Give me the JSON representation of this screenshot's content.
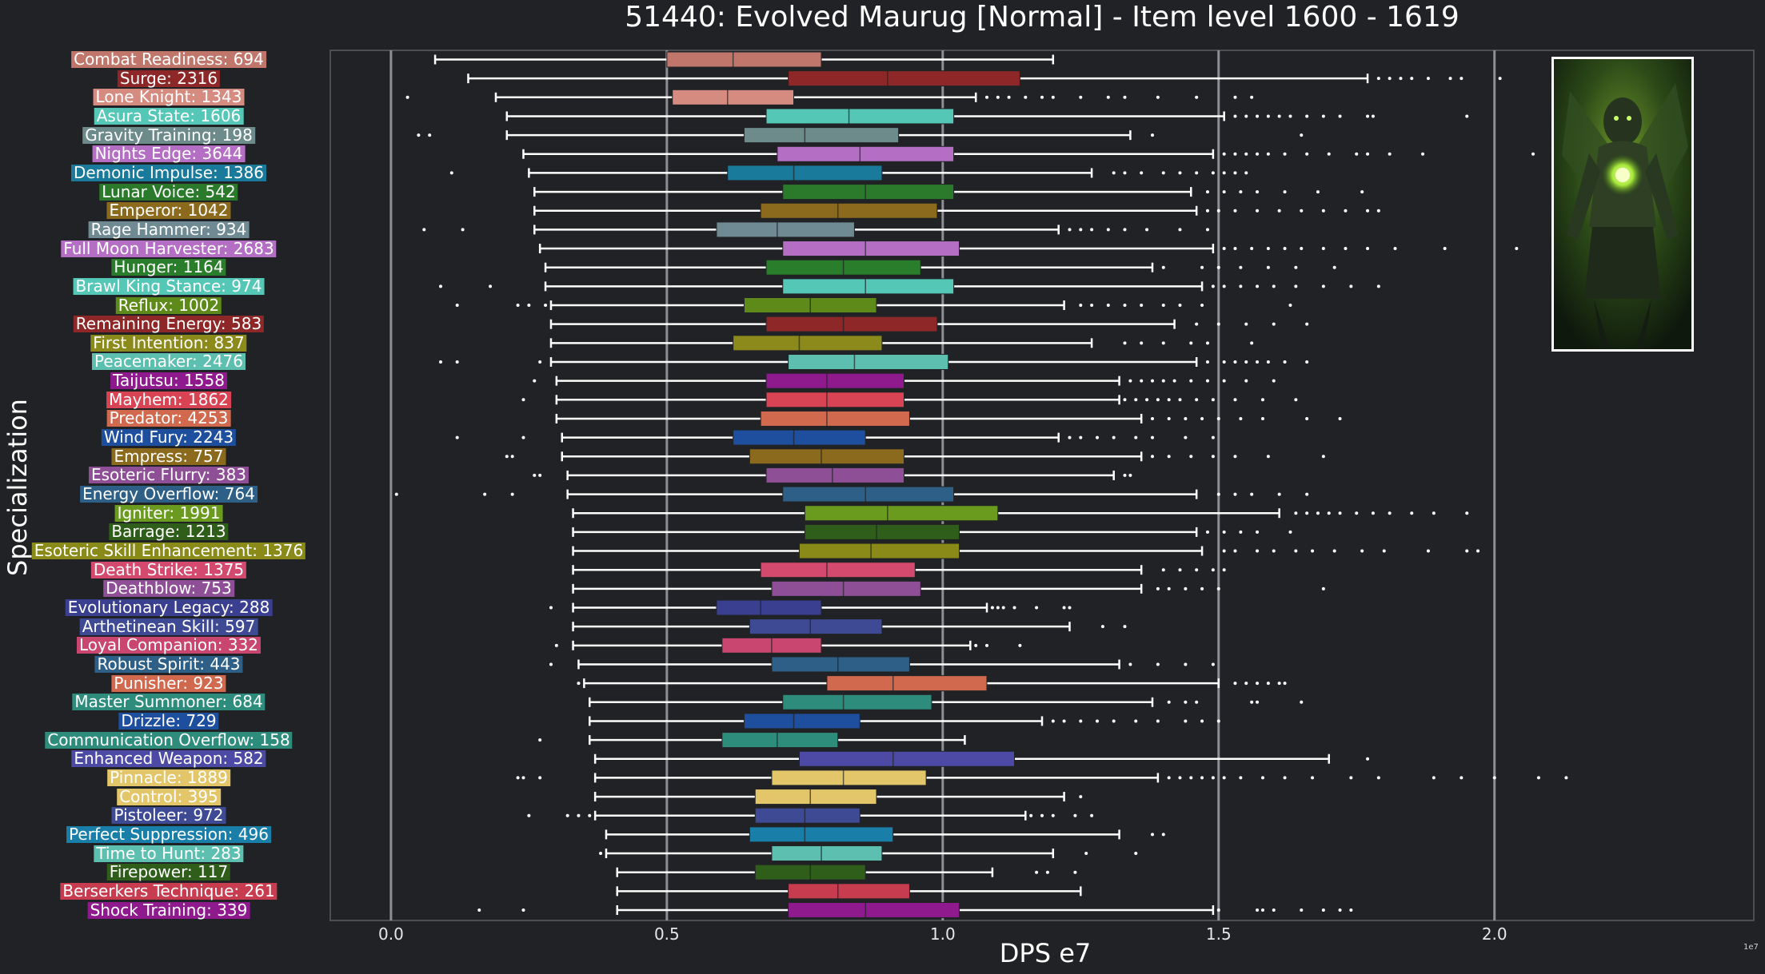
{
  "header": {
    "title": "51440: Evolved Maurug [Normal] - Item level 1600 - 1619"
  },
  "chart_data": {
    "type": "boxplot",
    "orientation": "horizontal",
    "xlabel": "DPS e7",
    "ylabel": "Specialization",
    "x_scale_note": "1e7",
    "xlim": [
      -0.11,
      2.47
    ],
    "xticks": [
      "0.0",
      "0.5",
      "1.0",
      "1.5",
      "2.0"
    ],
    "xtick_values": [
      0,
      0.5,
      1.0,
      1.5,
      2.0
    ],
    "grid": "vertical",
    "series": [
      {
        "label": "Combat Readiness: 694",
        "color": "#c0766a",
        "whisker": [
          0.08,
          1.2
        ],
        "box": [
          0.5,
          0.78
        ],
        "median": 0.62,
        "outliers": []
      },
      {
        "label": "Surge: 2316",
        "color": "#8e2727",
        "whisker": [
          0.14,
          1.77
        ],
        "box": [
          0.72,
          1.14
        ],
        "median": 0.9,
        "outliers": [
          1.79,
          1.81,
          1.83,
          1.85,
          1.88,
          1.92,
          1.94,
          2.01
        ]
      },
      {
        "label": "Lone Knight: 1343",
        "color": "#d68b80",
        "whisker": [
          0.19,
          1.06
        ],
        "box": [
          0.51,
          0.73
        ],
        "median": 0.61,
        "outliers": [
          0.03,
          1.08,
          1.1,
          1.12,
          1.15,
          1.18,
          1.2,
          1.25,
          1.3,
          1.33,
          1.39,
          1.46,
          1.53,
          1.56
        ]
      },
      {
        "label": "Asura State: 1606",
        "color": "#55c7b7",
        "whisker": [
          0.21,
          1.51
        ],
        "box": [
          0.68,
          1.02
        ],
        "median": 0.83,
        "outliers": [
          1.53,
          1.55,
          1.57,
          1.59,
          1.61,
          1.63,
          1.66,
          1.69,
          1.72,
          1.77,
          1.78,
          1.95
        ]
      },
      {
        "label": "Gravity Training: 198",
        "color": "#6e8b8c",
        "whisker": [
          0.21,
          1.34
        ],
        "box": [
          0.64,
          0.92
        ],
        "median": 0.75,
        "outliers": [
          0.05,
          0.07,
          1.38,
          1.65
        ]
      },
      {
        "label": "Nights Edge: 3644",
        "color": "#b46fc4",
        "whisker": [
          0.24,
          1.49
        ],
        "box": [
          0.7,
          1.02
        ],
        "median": 0.85,
        "outliers": [
          1.51,
          1.53,
          1.55,
          1.57,
          1.59,
          1.62,
          1.66,
          1.7,
          1.75,
          1.77,
          1.81,
          1.87,
          2.07
        ]
      },
      {
        "label": "Demonic Impulse: 1386",
        "color": "#1a7a9c",
        "whisker": [
          0.25,
          1.27
        ],
        "box": [
          0.61,
          0.89
        ],
        "median": 0.73,
        "outliers": [
          0.11,
          1.31,
          1.33,
          1.36,
          1.4,
          1.43,
          1.46,
          1.49,
          1.51,
          1.53,
          1.55
        ]
      },
      {
        "label": "Lunar Voice: 542",
        "color": "#2b7a2b",
        "whisker": [
          0.26,
          1.45
        ],
        "box": [
          0.71,
          1.02
        ],
        "median": 0.86,
        "outliers": [
          1.48,
          1.51,
          1.54,
          1.57,
          1.62,
          1.68,
          1.76
        ]
      },
      {
        "label": "Emperor: 1042",
        "color": "#8b6a1e",
        "whisker": [
          0.26,
          1.46
        ],
        "box": [
          0.67,
          0.99
        ],
        "median": 0.81,
        "outliers": [
          1.48,
          1.5,
          1.53,
          1.57,
          1.61,
          1.65,
          1.69,
          1.73,
          1.77,
          1.79
        ]
      },
      {
        "label": "Rage Hammer: 934",
        "color": "#6f8a93",
        "whisker": [
          0.26,
          1.21
        ],
        "box": [
          0.59,
          0.84
        ],
        "median": 0.7,
        "outliers": [
          0.06,
          0.13,
          1.23,
          1.25,
          1.27,
          1.3,
          1.33,
          1.37,
          1.43,
          1.48
        ]
      },
      {
        "label": "Full Moon Harvester: 2683",
        "color": "#b46fc4",
        "whisker": [
          0.27,
          1.49
        ],
        "box": [
          0.71,
          1.03
        ],
        "median": 0.86,
        "outliers": [
          1.51,
          1.53,
          1.56,
          1.59,
          1.62,
          1.65,
          1.69,
          1.73,
          1.77,
          1.82,
          1.91,
          2.04
        ]
      },
      {
        "label": "Hunger: 1164",
        "color": "#2a7d2a",
        "whisker": [
          0.28,
          1.38
        ],
        "box": [
          0.68,
          0.96
        ],
        "median": 0.82,
        "outliers": [
          1.4,
          1.47,
          1.5,
          1.54,
          1.59,
          1.64,
          1.71
        ]
      },
      {
        "label": "Brawl King Stance: 974",
        "color": "#55c7b7",
        "whisker": [
          0.28,
          1.47
        ],
        "box": [
          0.71,
          1.02
        ],
        "median": 0.86,
        "outliers": [
          0.09,
          0.18,
          1.49,
          1.51,
          1.54,
          1.57,
          1.6,
          1.64,
          1.69,
          1.74,
          1.79
        ]
      },
      {
        "label": "Reflux: 1002",
        "color": "#5d8a18",
        "whisker": [
          0.29,
          1.22
        ],
        "box": [
          0.64,
          0.88
        ],
        "median": 0.76,
        "outliers": [
          0.12,
          0.23,
          0.25,
          0.28,
          1.25,
          1.27,
          1.3,
          1.33,
          1.36,
          1.4,
          1.43,
          1.47,
          1.63
        ]
      },
      {
        "label": "Remaining Energy: 583",
        "color": "#8e2727",
        "whisker": [
          0.29,
          1.42
        ],
        "box": [
          0.68,
          0.99
        ],
        "median": 0.82,
        "outliers": [
          1.46,
          1.5,
          1.55,
          1.6,
          1.66
        ]
      },
      {
        "label": "First Intention: 837",
        "color": "#8b8a1a",
        "whisker": [
          0.29,
          1.27
        ],
        "box": [
          0.62,
          0.89
        ],
        "median": 0.74,
        "outliers": [
          1.33,
          1.36,
          1.4,
          1.45,
          1.48,
          1.56
        ]
      },
      {
        "label": "Peacemaker: 2476",
        "color": "#5dbfb0",
        "whisker": [
          0.29,
          1.46
        ],
        "box": [
          0.72,
          1.01
        ],
        "median": 0.84,
        "outliers": [
          0.09,
          0.12,
          0.27,
          1.48,
          1.51,
          1.53,
          1.55,
          1.57,
          1.59,
          1.62,
          1.66
        ]
      },
      {
        "label": "Taijutsu: 1558",
        "color": "#8e1a8e",
        "whisker": [
          0.3,
          1.32
        ],
        "box": [
          0.68,
          0.93
        ],
        "median": 0.79,
        "outliers": [
          0.26,
          1.34,
          1.36,
          1.38,
          1.4,
          1.42,
          1.45,
          1.48,
          1.51,
          1.55,
          1.6
        ]
      },
      {
        "label": "Mayhem: 1862",
        "color": "#d94455",
        "whisker": [
          0.3,
          1.32
        ],
        "box": [
          0.68,
          0.93
        ],
        "median": 0.79,
        "outliers": [
          0.24,
          1.33,
          1.35,
          1.37,
          1.39,
          1.41,
          1.43,
          1.46,
          1.49,
          1.53,
          1.58,
          1.64
        ]
      },
      {
        "label": "Predator: 4253",
        "color": "#d0694e",
        "whisker": [
          0.3,
          1.36
        ],
        "box": [
          0.67,
          0.94
        ],
        "median": 0.79,
        "outliers": [
          1.38,
          1.41,
          1.44,
          1.47,
          1.5,
          1.54,
          1.58,
          1.66,
          1.72
        ]
      },
      {
        "label": "Wind Fury: 2243",
        "color": "#1e4f9e",
        "whisker": [
          0.31,
          1.21
        ],
        "box": [
          0.62,
          0.86
        ],
        "median": 0.73,
        "outliers": [
          0.12,
          0.24,
          1.23,
          1.25,
          1.28,
          1.31,
          1.35,
          1.38,
          1.44,
          1.49
        ]
      },
      {
        "label": "Empress: 757",
        "color": "#8b6a1e",
        "whisker": [
          0.31,
          1.36
        ],
        "box": [
          0.65,
          0.93
        ],
        "median": 0.78,
        "outliers": [
          0.21,
          0.22,
          1.38,
          1.41,
          1.45,
          1.49,
          1.53,
          1.59,
          1.69
        ]
      },
      {
        "label": "Esoteric Flurry: 383",
        "color": "#8f4f96",
        "whisker": [
          0.32,
          1.31
        ],
        "box": [
          0.68,
          0.93
        ],
        "median": 0.8,
        "outliers": [
          0.26,
          0.27,
          1.33,
          1.34
        ]
      },
      {
        "label": "Energy Overflow: 764",
        "color": "#2e5f86",
        "whisker": [
          0.32,
          1.46
        ],
        "box": [
          0.71,
          1.02
        ],
        "median": 0.86,
        "outliers": [
          0.01,
          0.17,
          0.22,
          1.5,
          1.53,
          1.56,
          1.61,
          1.66
        ]
      },
      {
        "label": "Igniter: 1991",
        "color": "#6a9a1e",
        "whisker": [
          0.33,
          1.61
        ],
        "box": [
          0.75,
          1.1
        ],
        "median": 0.9,
        "outliers": [
          1.64,
          1.66,
          1.68,
          1.7,
          1.72,
          1.75,
          1.78,
          1.81,
          1.85,
          1.89,
          1.95
        ]
      },
      {
        "label": "Barrage: 1213",
        "color": "#2f5e1a",
        "whisker": [
          0.33,
          1.46
        ],
        "box": [
          0.75,
          1.03
        ],
        "median": 0.88,
        "outliers": [
          1.48,
          1.51,
          1.54,
          1.57,
          1.63
        ]
      },
      {
        "label": "Esoteric Skill Enhancement: 1376",
        "color": "#8a8a18",
        "whisker": [
          0.33,
          1.47
        ],
        "box": [
          0.74,
          1.03
        ],
        "median": 0.87,
        "outliers": [
          1.51,
          1.53,
          1.57,
          1.6,
          1.64,
          1.67,
          1.71,
          1.76,
          1.8,
          1.88,
          1.95,
          1.97
        ]
      },
      {
        "label": "Death Strike: 1375",
        "color": "#d44a6e",
        "whisker": [
          0.33,
          1.36
        ],
        "box": [
          0.67,
          0.95
        ],
        "median": 0.79,
        "outliers": [
          1.4,
          1.43,
          1.46,
          1.49,
          1.51
        ]
      },
      {
        "label": "Deathblow: 753",
        "color": "#8f4f96",
        "whisker": [
          0.33,
          1.36
        ],
        "box": [
          0.69,
          0.96
        ],
        "median": 0.82,
        "outliers": [
          1.39,
          1.41,
          1.44,
          1.47,
          1.5,
          1.69
        ]
      },
      {
        "label": "Evolutionary Legacy: 288",
        "color": "#3a3f8f",
        "whisker": [
          0.33,
          1.08
        ],
        "box": [
          0.59,
          0.78
        ],
        "median": 0.67,
        "outliers": [
          0.29,
          1.09,
          1.1,
          1.11,
          1.13,
          1.17,
          1.22,
          1.23
        ]
      },
      {
        "label": "Arthetinean Skill: 597",
        "color": "#3f4a94",
        "whisker": [
          0.33,
          1.23
        ],
        "box": [
          0.65,
          0.89
        ],
        "median": 0.76,
        "outliers": [
          1.29,
          1.33
        ]
      },
      {
        "label": "Loyal Companion: 332",
        "color": "#c94670",
        "whisker": [
          0.33,
          1.05
        ],
        "box": [
          0.6,
          0.78
        ],
        "median": 0.69,
        "outliers": [
          0.3,
          1.06,
          1.08,
          1.14
        ]
      },
      {
        "label": "Robust Spirit: 443",
        "color": "#2e5f86",
        "whisker": [
          0.34,
          1.32
        ],
        "box": [
          0.69,
          0.94
        ],
        "median": 0.81,
        "outliers": [
          0.29,
          1.34,
          1.39,
          1.44,
          1.49
        ]
      },
      {
        "label": "Punisher: 923",
        "color": "#d0694e",
        "whisker": [
          0.35,
          1.5
        ],
        "box": [
          0.79,
          1.08
        ],
        "median": 0.91,
        "outliers": [
          0.34,
          1.53,
          1.55,
          1.57,
          1.59,
          1.61,
          1.62
        ]
      },
      {
        "label": "Master Summoner: 684",
        "color": "#2d8c7c",
        "whisker": [
          0.36,
          1.38
        ],
        "box": [
          0.71,
          0.98
        ],
        "median": 0.82,
        "outliers": [
          1.41,
          1.44,
          1.46,
          1.56,
          1.57,
          1.65
        ]
      },
      {
        "label": "Drizzle: 729",
        "color": "#1e4f9e",
        "whisker": [
          0.36,
          1.18
        ],
        "box": [
          0.64,
          0.85
        ],
        "median": 0.73,
        "outliers": [
          1.2,
          1.22,
          1.25,
          1.28,
          1.31,
          1.35,
          1.39,
          1.44,
          1.47,
          1.5
        ]
      },
      {
        "label": "Communication Overflow: 158",
        "color": "#2d8c7c",
        "whisker": [
          0.36,
          1.04
        ],
        "box": [
          0.6,
          0.81
        ],
        "median": 0.7,
        "outliers": [
          0.27
        ]
      },
      {
        "label": "Enhanced Weapon: 582",
        "color": "#4d4aa6",
        "whisker": [
          0.37,
          1.7
        ],
        "box": [
          0.74,
          1.13
        ],
        "median": 0.91,
        "outliers": [
          1.77
        ]
      },
      {
        "label": "Pinnacle: 1889",
        "color": "#e3c66a",
        "whisker": [
          0.37,
          1.39
        ],
        "box": [
          0.69,
          0.97
        ],
        "median": 0.82,
        "outliers": [
          0.23,
          0.24,
          0.27,
          1.41,
          1.43,
          1.45,
          1.47,
          1.49,
          1.51,
          1.54,
          1.58,
          1.62,
          1.67,
          1.74,
          1.79,
          1.89,
          1.94,
          2.0,
          2.08,
          2.13
        ]
      },
      {
        "label": "Control: 395",
        "color": "#e3c66a",
        "whisker": [
          0.37,
          1.22
        ],
        "box": [
          0.66,
          0.88
        ],
        "median": 0.76,
        "outliers": [
          1.25
        ]
      },
      {
        "label": "Pistoleer: 972",
        "color": "#3f4a94",
        "whisker": [
          0.37,
          1.15
        ],
        "box": [
          0.66,
          0.85
        ],
        "median": 0.75,
        "outliers": [
          0.25,
          0.32,
          0.34,
          0.36,
          1.16,
          1.18,
          1.2,
          1.24,
          1.27
        ]
      },
      {
        "label": "Perfect Suppression: 496",
        "color": "#1a7fa8",
        "whisker": [
          0.39,
          1.32
        ],
        "box": [
          0.65,
          0.91
        ],
        "median": 0.75,
        "outliers": [
          1.38,
          1.4
        ]
      },
      {
        "label": "Time to Hunt: 283",
        "color": "#5dbfb0",
        "whisker": [
          0.39,
          1.2
        ],
        "box": [
          0.69,
          0.89
        ],
        "median": 0.78,
        "outliers": [
          0.38,
          1.26,
          1.35
        ]
      },
      {
        "label": "Firepower: 117",
        "color": "#2f5e1a",
        "whisker": [
          0.41,
          1.09
        ],
        "box": [
          0.66,
          0.86
        ],
        "median": 0.76,
        "outliers": [
          1.17,
          1.19,
          1.24
        ]
      },
      {
        "label": "Berserkers Technique: 261",
        "color": "#c83c50",
        "whisker": [
          0.41,
          1.25
        ],
        "box": [
          0.72,
          0.94
        ],
        "median": 0.81,
        "outliers": []
      },
      {
        "label": "Shock Training: 339",
        "color": "#8e1a8e",
        "whisker": [
          0.41,
          1.49
        ],
        "box": [
          0.72,
          1.03
        ],
        "median": 0.86,
        "outliers": [
          0.16,
          0.24,
          1.5,
          1.57,
          1.58,
          1.6,
          1.65,
          1.69,
          1.72,
          1.74
        ]
      }
    ]
  },
  "portrait": {
    "icon": "boss-portrait"
  }
}
